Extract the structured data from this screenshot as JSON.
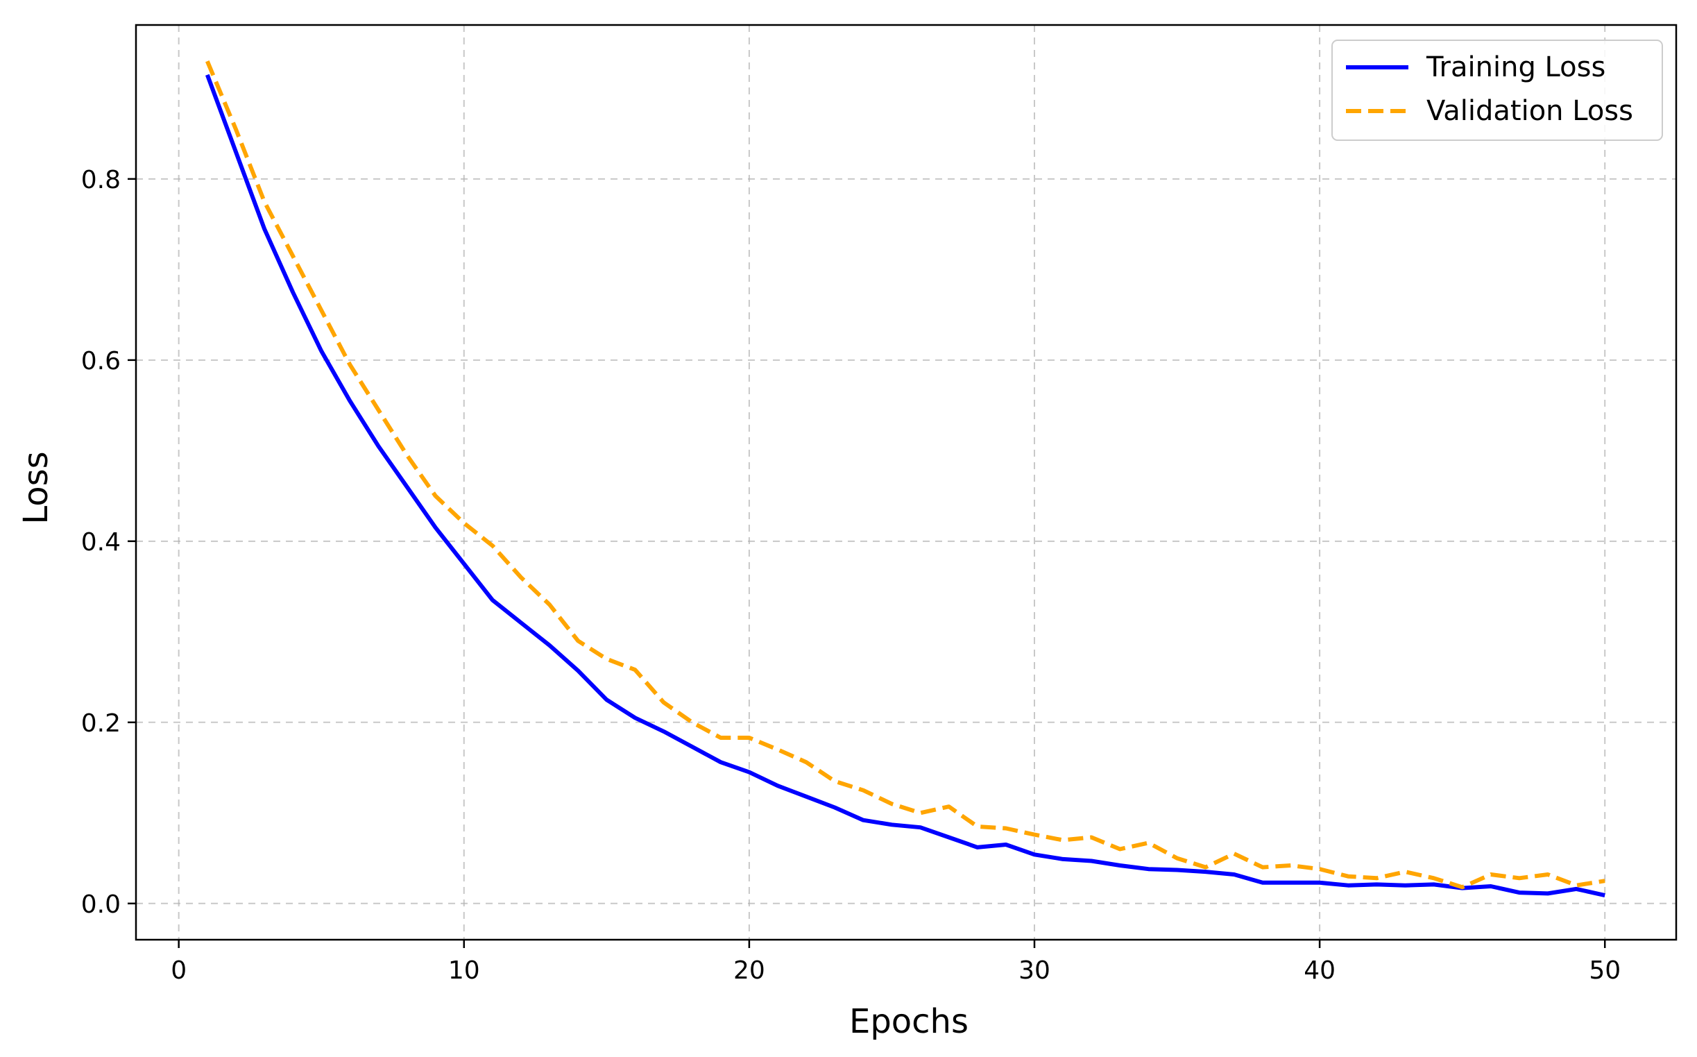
{
  "chart_data": {
    "type": "line",
    "title": "",
    "xlabel": "Epochs",
    "ylabel": "Loss",
    "xlim": [
      -1.5,
      52.5
    ],
    "ylim": [
      -0.04,
      0.97
    ],
    "xticks": [
      0,
      10,
      20,
      30,
      40,
      50
    ],
    "yticks": [
      0.0,
      0.2,
      0.4,
      0.6,
      0.8
    ],
    "xtick_labels": [
      "0",
      "10",
      "20",
      "30",
      "40",
      "50"
    ],
    "ytick_labels": [
      "0.0",
      "0.2",
      "0.4",
      "0.6",
      "0.8"
    ],
    "grid": true,
    "legend_position": "top-right",
    "x": [
      1,
      2,
      3,
      4,
      5,
      6,
      7,
      8,
      9,
      10,
      11,
      12,
      13,
      14,
      15,
      16,
      17,
      18,
      19,
      20,
      21,
      22,
      23,
      24,
      25,
      26,
      27,
      28,
      29,
      30,
      31,
      32,
      33,
      34,
      35,
      36,
      37,
      38,
      39,
      40,
      41,
      42,
      43,
      44,
      45,
      46,
      47,
      48,
      49,
      50
    ],
    "series": [
      {
        "name": "Training Loss",
        "color": "#0000ff",
        "style": "solid",
        "values": [
          0.915,
          0.83,
          0.745,
          0.675,
          0.61,
          0.555,
          0.505,
          0.46,
          0.415,
          0.375,
          0.335,
          0.31,
          0.285,
          0.257,
          0.225,
          0.205,
          0.19,
          0.173,
          0.156,
          0.145,
          0.13,
          0.118,
          0.106,
          0.092,
          0.087,
          0.084,
          0.073,
          0.062,
          0.065,
          0.054,
          0.049,
          0.047,
          0.042,
          0.038,
          0.037,
          0.035,
          0.032,
          0.023,
          0.023,
          0.023,
          0.02,
          0.021,
          0.02,
          0.021,
          0.017,
          0.019,
          0.012,
          0.011,
          0.016,
          0.009
        ]
      },
      {
        "name": "Validation Loss",
        "color": "#ffa500",
        "style": "dashed",
        "values": [
          0.93,
          0.855,
          0.775,
          0.715,
          0.655,
          0.595,
          0.545,
          0.495,
          0.45,
          0.42,
          0.395,
          0.36,
          0.33,
          0.29,
          0.27,
          0.258,
          0.222,
          0.2,
          0.183,
          0.183,
          0.17,
          0.156,
          0.135,
          0.125,
          0.11,
          0.1,
          0.107,
          0.085,
          0.083,
          0.076,
          0.07,
          0.073,
          0.06,
          0.067,
          0.05,
          0.04,
          0.055,
          0.04,
          0.042,
          0.038,
          0.03,
          0.028,
          0.035,
          0.028,
          0.018,
          0.032,
          0.028,
          0.032,
          0.02,
          0.025
        ]
      }
    ]
  }
}
